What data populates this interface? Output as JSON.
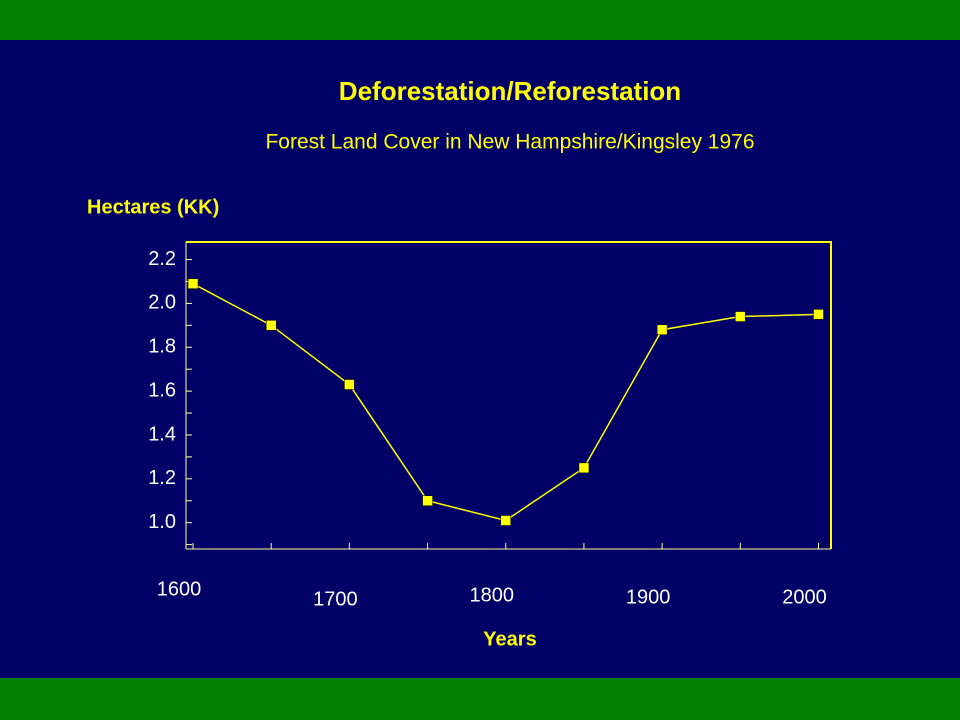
{
  "chart_data": {
    "type": "line",
    "title": "Deforestation/Reforestation",
    "subtitle": "Forest Land Cover in New Hampshire/Kingsley 1976",
    "y_label": "Hectares (KK)",
    "x_label": "Years",
    "x": [
      1600,
      1650,
      1700,
      1750,
      1800,
      1850,
      1900,
      1950,
      2000
    ],
    "series": [
      {
        "color": "#ffff00",
        "values": [
          2.09,
          1.9,
          1.63,
          1.1,
          1.01,
          1.25,
          1.88,
          1.94,
          1.95
        ]
      }
    ],
    "xlim": [
      1595.5,
      2008
    ],
    "xticks": [
      1600,
      1700,
      1800,
      1900,
      2000
    ],
    "xminorticks": [
      1650,
      1750,
      1850,
      1950
    ],
    "ylim": [
      0.88,
      2.28
    ],
    "yticks": [
      {
        "value": 1.0,
        "label": "1.0"
      },
      1.2,
      1.4,
      1.6,
      1.8,
      {
        "value": 2.0,
        "label": "2.0"
      },
      2.2
    ],
    "yminorticks": [
      0.9,
      1.1,
      1.3,
      1.5,
      1.7,
      1.9,
      2.1
    ]
  }
}
